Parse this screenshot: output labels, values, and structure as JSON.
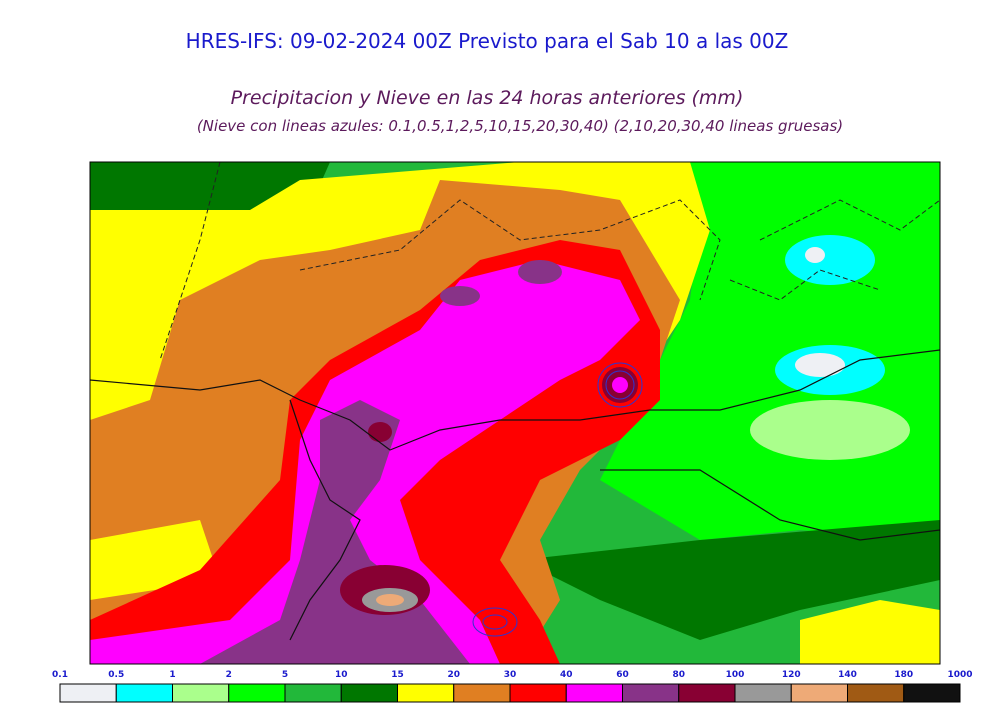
{
  "title": "HRES-IFS: 09-02-2024 00Z Previsto para el Sab 10 a las 00Z",
  "subtitle": "Precipitacion y Nieve en las 24 horas anteriores (mm)",
  "note": "(Nieve con lineas azules: 0.1,0.5,1,2,5,10,15,20,30,40)  (2,10,20,30,40 lineas gruesas)",
  "legend": {
    "levels": [
      0.1,
      0.5,
      1,
      2,
      5,
      10,
      15,
      20,
      30,
      40,
      60,
      80,
      100,
      120,
      140,
      180,
      1000
    ],
    "colors": [
      "#eef0f4",
      "#00ffff",
      "#aaff8c",
      "#00ff00",
      "#22b83a",
      "#007700",
      "#ffff00",
      "#e07f22",
      "#ff0000",
      "#ff00ff",
      "#883388",
      "#880033",
      "#999999",
      "#eeaa77",
      "#a05a14",
      "#111111"
    ]
  }
}
